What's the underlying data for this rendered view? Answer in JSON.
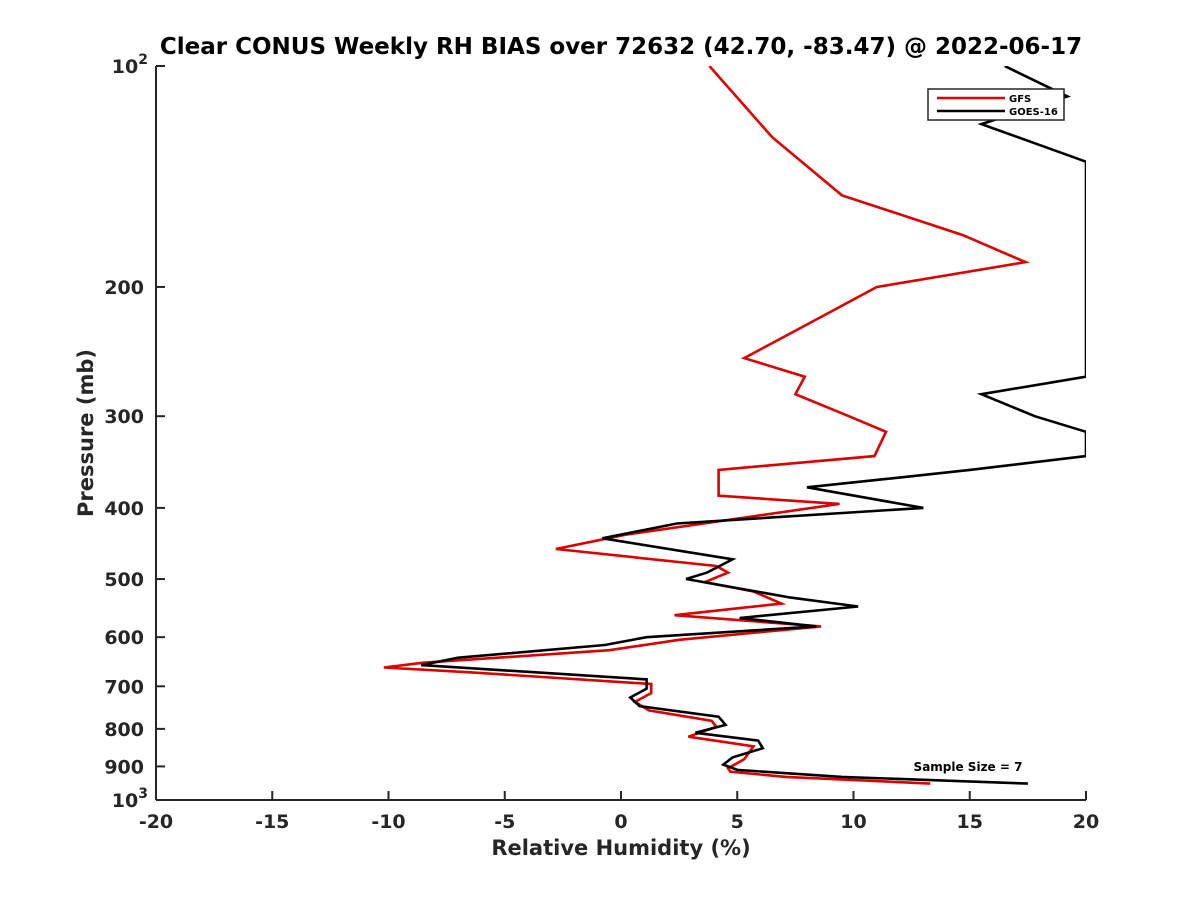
{
  "chart_data": {
    "type": "line",
    "title": "Clear CONUS Weekly RH BIAS over 72632 (42.70, -83.47) @ 2022-06-17",
    "xlabel": "Relative Humidity (%)",
    "ylabel": "Pressure (mb)",
    "xlim": [
      -20,
      20
    ],
    "ylim": [
      100,
      1000
    ],
    "yscale": "log",
    "y_reversed": true,
    "grid": false,
    "legend_placement": "top-right",
    "x_ticks": [
      "-20",
      "-15",
      "-10",
      "-5",
      "0",
      "5",
      "10",
      "15",
      "20"
    ],
    "y_ticks": [
      {
        "value": 100,
        "base": "10",
        "exp": "2"
      },
      {
        "value": 200,
        "label": "200"
      },
      {
        "value": 300,
        "label": "300"
      },
      {
        "value": 400,
        "label": "400"
      },
      {
        "value": 500,
        "label": "500"
      },
      {
        "value": 600,
        "label": "600"
      },
      {
        "value": 700,
        "label": "700"
      },
      {
        "value": 800,
        "label": "800"
      },
      {
        "value": 900,
        "label": "900"
      },
      {
        "value": 1000,
        "base": "10",
        "exp": "3"
      }
    ],
    "annotation": "Sample Size = 7",
    "series": [
      {
        "name": "GFS",
        "color": "#dd0000",
        "points": [
          [
            3.8,
            100
          ],
          [
            6.5,
            125
          ],
          [
            9.5,
            150
          ],
          [
            14.7,
            170
          ],
          [
            17.4,
            185
          ],
          [
            11,
            200
          ],
          [
            8,
            225
          ],
          [
            5.3,
            250
          ],
          [
            7.9,
            265
          ],
          [
            7.5,
            280
          ],
          [
            9.8,
            300
          ],
          [
            11.4,
            315
          ],
          [
            10.9,
            340
          ],
          [
            4.2,
            355
          ],
          [
            4.2,
            385
          ],
          [
            9.4,
            395
          ],
          [
            0.2,
            435
          ],
          [
            -2.8,
            455
          ],
          [
            4.1,
            480
          ],
          [
            4.6,
            490
          ],
          [
            3.6,
            505
          ],
          [
            5.7,
            520
          ],
          [
            6.9,
            540
          ],
          [
            2.3,
            560
          ],
          [
            8.6,
            580
          ],
          [
            2.5,
            605
          ],
          [
            -0.5,
            625
          ],
          [
            -8.5,
            650
          ],
          [
            -10.2,
            660
          ],
          [
            -6.5,
            670
          ],
          [
            1.3,
            695
          ],
          [
            1.3,
            715
          ],
          [
            0.6,
            735
          ],
          [
            1.2,
            755
          ],
          [
            3.9,
            780
          ],
          [
            4.1,
            795
          ],
          [
            2.9,
            820
          ],
          [
            5.7,
            845
          ],
          [
            5.3,
            880
          ],
          [
            4.6,
            905
          ],
          [
            4.7,
            915
          ],
          [
            7.1,
            930
          ],
          [
            13.3,
            950
          ]
        ]
      },
      {
        "name": "GOES-16",
        "color": "#000000",
        "points": [
          [
            16.5,
            100
          ],
          [
            19.2,
            110
          ],
          [
            15.5,
            120
          ],
          [
            20,
            135
          ],
          [
            20,
            265
          ],
          [
            15.5,
            280
          ],
          [
            17.8,
            300
          ],
          [
            20,
            315
          ],
          [
            20,
            340
          ],
          [
            15,
            355
          ],
          [
            11.5,
            365
          ],
          [
            8,
            375
          ],
          [
            13,
            400
          ],
          [
            2.4,
            420
          ],
          [
            -0.8,
            440
          ],
          [
            4.8,
            470
          ],
          [
            3.7,
            490
          ],
          [
            2.8,
            500
          ],
          [
            7.3,
            530
          ],
          [
            10.2,
            545
          ],
          [
            5.1,
            565
          ],
          [
            8.4,
            580
          ],
          [
            1.1,
            600
          ],
          [
            -0.7,
            615
          ],
          [
            -7,
            640
          ],
          [
            -8.6,
            655
          ],
          [
            1.1,
            685
          ],
          [
            1.1,
            705
          ],
          [
            0.4,
            725
          ],
          [
            0.8,
            745
          ],
          [
            4.2,
            770
          ],
          [
            4.5,
            790
          ],
          [
            3.2,
            810
          ],
          [
            5.9,
            830
          ],
          [
            6.1,
            850
          ],
          [
            4.8,
            875
          ],
          [
            4.4,
            895
          ],
          [
            5,
            910
          ],
          [
            9.5,
            930
          ],
          [
            17.5,
            950
          ]
        ]
      }
    ]
  }
}
